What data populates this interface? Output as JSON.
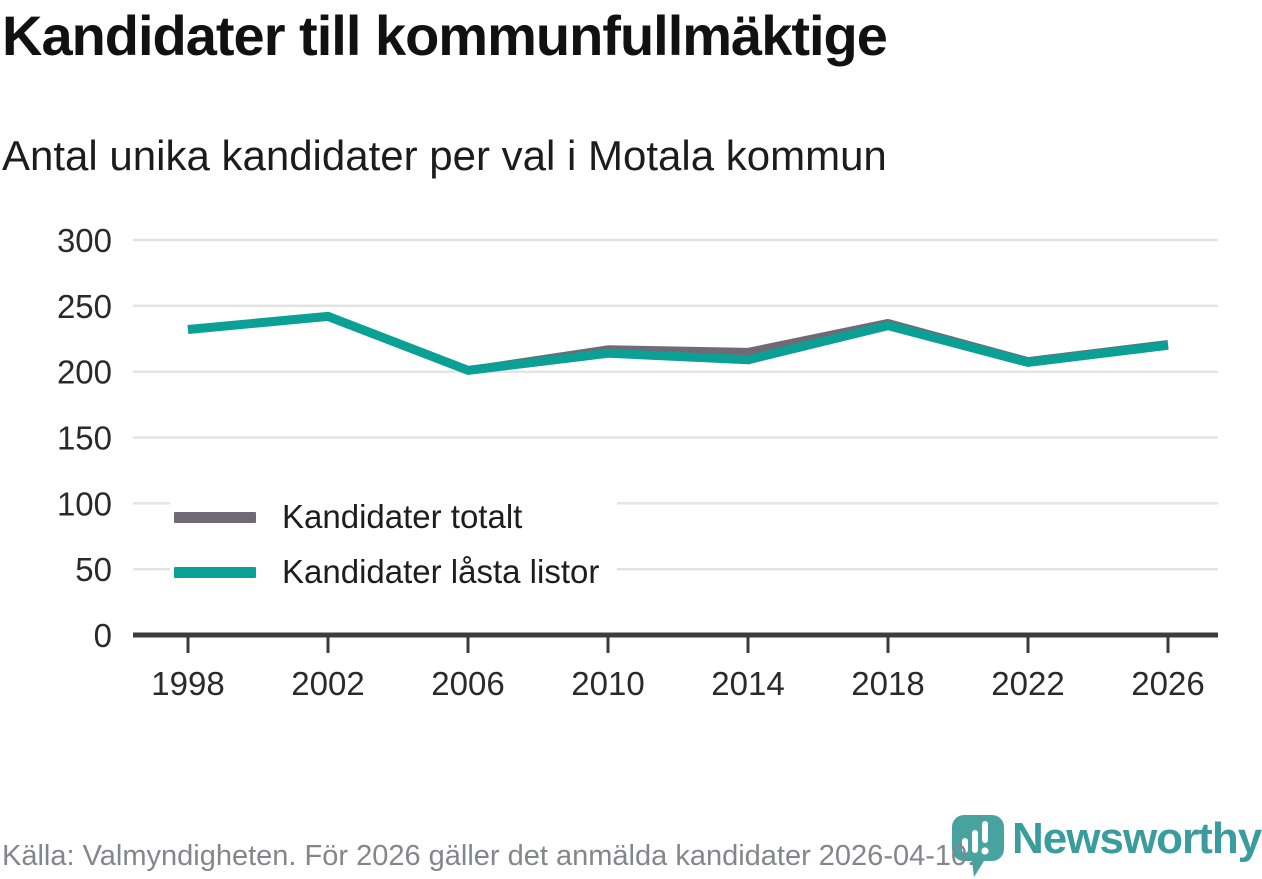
{
  "header": {
    "title": "Kandidater till kommunfullmäktige",
    "subtitle": "Antal unika kandidater per val i Motala kommun"
  },
  "chart_data": {
    "type": "line",
    "x": [
      1998,
      2002,
      2006,
      2010,
      2014,
      2018,
      2022,
      2026
    ],
    "series": [
      {
        "name": "Kandidater totalt",
        "color": "#6f6a74",
        "values": [
          232,
          242,
          201,
          217,
          215,
          237,
          208,
          221
        ]
      },
      {
        "name": "Kandidater låsta listor",
        "color": "#0aa096",
        "values": [
          232,
          242,
          201,
          214,
          209,
          235,
          207,
          220
        ]
      }
    ],
    "ylim": [
      0,
      300
    ],
    "yticks": [
      0,
      50,
      100,
      150,
      200,
      250,
      300
    ],
    "xtick_labels": [
      "1998",
      "2002",
      "2006",
      "2010",
      "2014",
      "2018",
      "2022",
      "2026"
    ],
    "grid": true,
    "legend_position": "inside-bottom-left",
    "gridline_color": "#e3e3e3",
    "axis_color": "#3c3c3c",
    "tick_label_color": "#2a2a2a"
  },
  "footer": {
    "source": "Källa: Valmyndigheten. För 2026 gäller det anmälda kandidater 2026-04-10.",
    "brand": "Newsworthy",
    "brand_color": "#3a9c9c",
    "brand_pin_color": "#48a3a0"
  }
}
